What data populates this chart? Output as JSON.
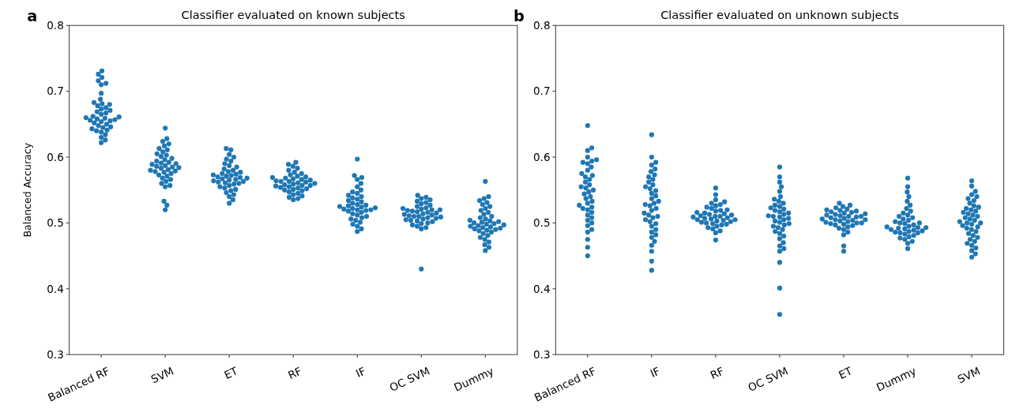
{
  "chart_data": [
    {
      "type": "scatter",
      "title": "Classifier evaluated on known subjects",
      "ylabel": "Balanced Accuracy",
      "annotations": [
        "a"
      ],
      "categories": [
        "Balanced RF",
        "SVM",
        "ET",
        "RF",
        "IF",
        "OC SVM",
        "Dummy"
      ],
      "ylim": [
        0.3,
        0.8
      ],
      "yticks": [
        0.3,
        0.4,
        0.5,
        0.6,
        0.7,
        0.8
      ],
      "marker": "circle",
      "series": [
        {
          "color": "#1f77b4",
          "x": [
            "Balanced RF",
            "Balanced RF",
            "Balanced RF",
            "Balanced RF",
            "Balanced RF",
            "Balanced RF",
            "Balanced RF",
            "Balanced RF",
            "Balanced RF",
            "Balanced RF",
            "Balanced RF",
            "Balanced RF",
            "Balanced RF",
            "Balanced RF",
            "Balanced RF",
            "Balanced RF",
            "Balanced RF",
            "Balanced RF",
            "Balanced RF",
            "Balanced RF",
            "Balanced RF",
            "Balanced RF",
            "Balanced RF",
            "Balanced RF",
            "Balanced RF",
            "Balanced RF",
            "Balanced RF",
            "Balanced RF",
            "Balanced RF",
            "Balanced RF",
            "Balanced RF",
            "Balanced RF",
            "Balanced RF",
            "Balanced RF",
            "Balanced RF",
            "Balanced RF",
            "Balanced RF",
            "Balanced RF",
            "Balanced RF",
            "Balanced RF"
          ],
          "values": [
            0.731,
            0.726,
            0.721,
            0.716,
            0.712,
            0.71,
            0.697,
            0.688,
            0.683,
            0.681,
            0.68,
            0.678,
            0.675,
            0.673,
            0.671,
            0.669,
            0.667,
            0.665,
            0.662,
            0.661,
            0.66,
            0.659,
            0.658,
            0.657,
            0.656,
            0.655,
            0.654,
            0.652,
            0.65,
            0.648,
            0.646,
            0.645,
            0.643,
            0.641,
            0.64,
            0.638,
            0.634,
            0.63,
            0.626,
            0.622
          ]
        },
        {
          "color": "#1f77b4",
          "x": [
            "SVM",
            "SVM",
            "SVM",
            "SVM",
            "SVM",
            "SVM",
            "SVM",
            "SVM",
            "SVM",
            "SVM",
            "SVM",
            "SVM",
            "SVM",
            "SVM",
            "SVM",
            "SVM",
            "SVM",
            "SVM",
            "SVM",
            "SVM",
            "SVM",
            "SVM",
            "SVM",
            "SVM",
            "SVM",
            "SVM",
            "SVM",
            "SVM",
            "SVM",
            "SVM",
            "SVM",
            "SVM",
            "SVM",
            "SVM",
            "SVM",
            "SVM",
            "SVM",
            "SVM",
            "SVM",
            "SVM"
          ],
          "values": [
            0.644,
            0.628,
            0.624,
            0.62,
            0.617,
            0.613,
            0.611,
            0.608,
            0.605,
            0.603,
            0.601,
            0.598,
            0.596,
            0.594,
            0.592,
            0.591,
            0.59,
            0.589,
            0.587,
            0.586,
            0.585,
            0.584,
            0.583,
            0.581,
            0.58,
            0.579,
            0.578,
            0.577,
            0.575,
            0.573,
            0.571,
            0.568,
            0.566,
            0.563,
            0.56,
            0.557,
            0.555,
            0.533,
            0.527,
            0.52
          ]
        },
        {
          "color": "#1f77b4",
          "x": [
            "ET",
            "ET",
            "ET",
            "ET",
            "ET",
            "ET",
            "ET",
            "ET",
            "ET",
            "ET",
            "ET",
            "ET",
            "ET",
            "ET",
            "ET",
            "ET",
            "ET",
            "ET",
            "ET",
            "ET",
            "ET",
            "ET",
            "ET",
            "ET",
            "ET",
            "ET",
            "ET",
            "ET",
            "ET",
            "ET",
            "ET",
            "ET",
            "ET",
            "ET",
            "ET",
            "ET",
            "ET",
            "ET",
            "ET",
            "ET"
          ],
          "values": [
            0.613,
            0.611,
            0.604,
            0.6,
            0.597,
            0.594,
            0.59,
            0.587,
            0.585,
            0.582,
            0.58,
            0.578,
            0.577,
            0.575,
            0.574,
            0.573,
            0.572,
            0.571,
            0.57,
            0.569,
            0.568,
            0.567,
            0.566,
            0.565,
            0.564,
            0.563,
            0.562,
            0.561,
            0.56,
            0.559,
            0.557,
            0.555,
            0.553,
            0.551,
            0.549,
            0.546,
            0.543,
            0.54,
            0.535,
            0.53
          ]
        },
        {
          "color": "#1f77b4",
          "x": [
            "RF",
            "RF",
            "RF",
            "RF",
            "RF",
            "RF",
            "RF",
            "RF",
            "RF",
            "RF",
            "RF",
            "RF",
            "RF",
            "RF",
            "RF",
            "RF",
            "RF",
            "RF",
            "RF",
            "RF",
            "RF",
            "RF",
            "RF",
            "RF",
            "RF",
            "RF",
            "RF",
            "RF",
            "RF",
            "RF",
            "RF",
            "RF",
            "RF",
            "RF",
            "RF",
            "RF",
            "RF",
            "RF",
            "RF",
            "RF"
          ],
          "values": [
            0.592,
            0.589,
            0.586,
            0.583,
            0.58,
            0.577,
            0.575,
            0.573,
            0.571,
            0.57,
            0.569,
            0.568,
            0.567,
            0.566,
            0.565,
            0.564,
            0.563,
            0.563,
            0.562,
            0.561,
            0.56,
            0.559,
            0.558,
            0.557,
            0.557,
            0.556,
            0.555,
            0.554,
            0.553,
            0.552,
            0.551,
            0.55,
            0.549,
            0.547,
            0.545,
            0.543,
            0.541,
            0.539,
            0.537,
            0.535
          ]
        },
        {
          "color": "#1f77b4",
          "x": [
            "IF",
            "IF",
            "IF",
            "IF",
            "IF",
            "IF",
            "IF",
            "IF",
            "IF",
            "IF",
            "IF",
            "IF",
            "IF",
            "IF",
            "IF",
            "IF",
            "IF",
            "IF",
            "IF",
            "IF",
            "IF",
            "IF",
            "IF",
            "IF",
            "IF",
            "IF",
            "IF",
            "IF",
            "IF",
            "IF",
            "IF",
            "IF",
            "IF",
            "IF",
            "IF",
            "IF",
            "IF",
            "IF",
            "IF",
            "IF"
          ],
          "values": [
            0.597,
            0.572,
            0.569,
            0.566,
            0.56,
            0.555,
            0.55,
            0.547,
            0.545,
            0.542,
            0.54,
            0.538,
            0.536,
            0.534,
            0.532,
            0.53,
            0.528,
            0.527,
            0.526,
            0.525,
            0.524,
            0.523,
            0.522,
            0.521,
            0.52,
            0.52,
            0.519,
            0.518,
            0.516,
            0.514,
            0.512,
            0.51,
            0.508,
            0.506,
            0.504,
            0.501,
            0.498,
            0.495,
            0.491,
            0.487
          ]
        },
        {
          "color": "#1f77b4",
          "x": [
            "OC SVM",
            "OC SVM",
            "OC SVM",
            "OC SVM",
            "OC SVM",
            "OC SVM",
            "OC SVM",
            "OC SVM",
            "OC SVM",
            "OC SVM",
            "OC SVM",
            "OC SVM",
            "OC SVM",
            "OC SVM",
            "OC SVM",
            "OC SVM",
            "OC SVM",
            "OC SVM",
            "OC SVM",
            "OC SVM",
            "OC SVM",
            "OC SVM",
            "OC SVM",
            "OC SVM",
            "OC SVM",
            "OC SVM",
            "OC SVM",
            "OC SVM",
            "OC SVM",
            "OC SVM",
            "OC SVM",
            "OC SVM",
            "OC SVM",
            "OC SVM",
            "OC SVM",
            "OC SVM",
            "OC SVM",
            "OC SVM",
            "OC SVM",
            "OC SVM"
          ],
          "values": [
            0.542,
            0.539,
            0.537,
            0.535,
            0.533,
            0.531,
            0.529,
            0.527,
            0.525,
            0.523,
            0.522,
            0.521,
            0.52,
            0.52,
            0.519,
            0.518,
            0.517,
            0.516,
            0.515,
            0.514,
            0.513,
            0.512,
            0.511,
            0.51,
            0.51,
            0.509,
            0.508,
            0.507,
            0.506,
            0.505,
            0.504,
            0.503,
            0.502,
            0.5,
            0.499,
            0.497,
            0.495,
            0.493,
            0.491,
            0.43
          ]
        },
        {
          "color": "#1f77b4",
          "x": [
            "Dummy",
            "Dummy",
            "Dummy",
            "Dummy",
            "Dummy",
            "Dummy",
            "Dummy",
            "Dummy",
            "Dummy",
            "Dummy",
            "Dummy",
            "Dummy",
            "Dummy",
            "Dummy",
            "Dummy",
            "Dummy",
            "Dummy",
            "Dummy",
            "Dummy",
            "Dummy",
            "Dummy",
            "Dummy",
            "Dummy",
            "Dummy",
            "Dummy",
            "Dummy",
            "Dummy",
            "Dummy",
            "Dummy",
            "Dummy",
            "Dummy",
            "Dummy",
            "Dummy",
            "Dummy",
            "Dummy",
            "Dummy",
            "Dummy",
            "Dummy",
            "Dummy",
            "Dummy"
          ],
          "values": [
            0.563,
            0.54,
            0.537,
            0.534,
            0.531,
            0.528,
            0.525,
            0.522,
            0.519,
            0.516,
            0.513,
            0.51,
            0.508,
            0.506,
            0.504,
            0.503,
            0.502,
            0.501,
            0.5,
            0.499,
            0.498,
            0.497,
            0.496,
            0.495,
            0.494,
            0.493,
            0.492,
            0.491,
            0.49,
            0.489,
            0.488,
            0.486,
            0.484,
            0.481,
            0.478,
            0.475,
            0.471,
            0.467,
            0.463,
            0.458
          ]
        }
      ]
    },
    {
      "type": "scatter",
      "title": "Classifier evaluated on unknown subjects",
      "annotations": [
        "b"
      ],
      "categories": [
        "Balanced RF",
        "IF",
        "RF",
        "OC SVM",
        "ET",
        "Dummy",
        "SVM"
      ],
      "ylim": [
        0.3,
        0.8
      ],
      "yticks": [
        0.3,
        0.4,
        0.5,
        0.6,
        0.7,
        0.8
      ],
      "marker": "circle",
      "series": [
        {
          "color": "#1f77b4",
          "x": [
            "Balanced RF",
            "Balanced RF",
            "Balanced RF",
            "Balanced RF",
            "Balanced RF",
            "Balanced RF",
            "Balanced RF",
            "Balanced RF",
            "Balanced RF",
            "Balanced RF",
            "Balanced RF",
            "Balanced RF",
            "Balanced RF",
            "Balanced RF",
            "Balanced RF",
            "Balanced RF",
            "Balanced RF",
            "Balanced RF",
            "Balanced RF",
            "Balanced RF",
            "Balanced RF",
            "Balanced RF",
            "Balanced RF",
            "Balanced RF",
            "Balanced RF",
            "Balanced RF",
            "Balanced RF",
            "Balanced RF",
            "Balanced RF",
            "Balanced RF",
            "Balanced RF",
            "Balanced RF",
            "Balanced RF",
            "Balanced RF",
            "Balanced RF",
            "Balanced RF",
            "Balanced RF",
            "Balanced RF",
            "Balanced RF",
            "Balanced RF"
          ],
          "values": [
            0.648,
            0.614,
            0.61,
            0.6,
            0.596,
            0.594,
            0.592,
            0.59,
            0.585,
            0.58,
            0.575,
            0.572,
            0.57,
            0.566,
            0.562,
            0.558,
            0.555,
            0.553,
            0.55,
            0.547,
            0.544,
            0.54,
            0.537,
            0.533,
            0.53,
            0.527,
            0.524,
            0.522,
            0.52,
            0.516,
            0.512,
            0.508,
            0.504,
            0.5,
            0.496,
            0.49,
            0.486,
            0.475,
            0.463,
            0.45
          ]
        },
        {
          "color": "#1f77b4",
          "x": [
            "IF",
            "IF",
            "IF",
            "IF",
            "IF",
            "IF",
            "IF",
            "IF",
            "IF",
            "IF",
            "IF",
            "IF",
            "IF",
            "IF",
            "IF",
            "IF",
            "IF",
            "IF",
            "IF",
            "IF",
            "IF",
            "IF",
            "IF",
            "IF",
            "IF",
            "IF",
            "IF",
            "IF",
            "IF",
            "IF",
            "IF",
            "IF",
            "IF",
            "IF",
            "IF",
            "IF",
            "IF",
            "IF",
            "IF",
            "IF"
          ],
          "values": [
            0.634,
            0.6,
            0.592,
            0.588,
            0.582,
            0.578,
            0.573,
            0.57,
            0.566,
            0.562,
            0.558,
            0.555,
            0.552,
            0.549,
            0.545,
            0.541,
            0.537,
            0.533,
            0.53,
            0.528,
            0.526,
            0.522,
            0.519,
            0.515,
            0.512,
            0.51,
            0.508,
            0.505,
            0.502,
            0.499,
            0.495,
            0.49,
            0.486,
            0.482,
            0.478,
            0.472,
            0.466,
            0.457,
            0.442,
            0.428
          ]
        },
        {
          "color": "#1f77b4",
          "x": [
            "RF",
            "RF",
            "RF",
            "RF",
            "RF",
            "RF",
            "RF",
            "RF",
            "RF",
            "RF",
            "RF",
            "RF",
            "RF",
            "RF",
            "RF",
            "RF",
            "RF",
            "RF",
            "RF",
            "RF",
            "RF",
            "RF",
            "RF",
            "RF",
            "RF",
            "RF",
            "RF",
            "RF",
            "RF",
            "RF",
            "RF",
            "RF",
            "RF",
            "RF",
            "RF",
            "RF",
            "RF",
            "RF",
            "RF",
            "RF"
          ],
          "values": [
            0.553,
            0.543,
            0.535,
            0.532,
            0.53,
            0.528,
            0.526,
            0.524,
            0.522,
            0.52,
            0.519,
            0.518,
            0.516,
            0.515,
            0.514,
            0.513,
            0.512,
            0.511,
            0.51,
            0.51,
            0.509,
            0.508,
            0.507,
            0.506,
            0.505,
            0.505,
            0.504,
            0.503,
            0.502,
            0.501,
            0.5,
            0.499,
            0.498,
            0.497,
            0.495,
            0.493,
            0.491,
            0.488,
            0.485,
            0.474
          ]
        },
        {
          "color": "#1f77b4",
          "x": [
            "OC SVM",
            "OC SVM",
            "OC SVM",
            "OC SVM",
            "OC SVM",
            "OC SVM",
            "OC SVM",
            "OC SVM",
            "OC SVM",
            "OC SVM",
            "OC SVM",
            "OC SVM",
            "OC SVM",
            "OC SVM",
            "OC SVM",
            "OC SVM",
            "OC SVM",
            "OC SVM",
            "OC SVM",
            "OC SVM",
            "OC SVM",
            "OC SVM",
            "OC SVM",
            "OC SVM",
            "OC SVM",
            "OC SVM",
            "OC SVM",
            "OC SVM",
            "OC SVM",
            "OC SVM",
            "OC SVM",
            "OC SVM",
            "OC SVM",
            "OC SVM",
            "OC SVM",
            "OC SVM",
            "OC SVM",
            "OC SVM",
            "OC SVM",
            "OC SVM"
          ],
          "values": [
            0.585,
            0.57,
            0.562,
            0.555,
            0.548,
            0.54,
            0.536,
            0.533,
            0.53,
            0.527,
            0.525,
            0.523,
            0.521,
            0.519,
            0.517,
            0.515,
            0.513,
            0.511,
            0.51,
            0.509,
            0.507,
            0.505,
            0.503,
            0.501,
            0.499,
            0.497,
            0.495,
            0.493,
            0.49,
            0.487,
            0.484,
            0.48,
            0.476,
            0.47,
            0.465,
            0.461,
            0.457,
            0.44,
            0.401,
            0.361
          ]
        },
        {
          "color": "#1f77b4",
          "x": [
            "ET",
            "ET",
            "ET",
            "ET",
            "ET",
            "ET",
            "ET",
            "ET",
            "ET",
            "ET",
            "ET",
            "ET",
            "ET",
            "ET",
            "ET",
            "ET",
            "ET",
            "ET",
            "ET",
            "ET",
            "ET",
            "ET",
            "ET",
            "ET",
            "ET",
            "ET",
            "ET",
            "ET",
            "ET",
            "ET",
            "ET",
            "ET",
            "ET",
            "ET",
            "ET",
            "ET",
            "ET",
            "ET",
            "ET",
            "ET"
          ],
          "values": [
            0.53,
            0.527,
            0.525,
            0.523,
            0.521,
            0.52,
            0.519,
            0.518,
            0.517,
            0.516,
            0.515,
            0.514,
            0.513,
            0.512,
            0.511,
            0.51,
            0.51,
            0.509,
            0.508,
            0.507,
            0.506,
            0.505,
            0.505,
            0.504,
            0.503,
            0.502,
            0.501,
            0.5,
            0.5,
            0.499,
            0.498,
            0.497,
            0.496,
            0.494,
            0.492,
            0.49,
            0.486,
            0.482,
            0.465,
            0.457
          ]
        },
        {
          "color": "#1f77b4",
          "x": [
            "Dummy",
            "Dummy",
            "Dummy",
            "Dummy",
            "Dummy",
            "Dummy",
            "Dummy",
            "Dummy",
            "Dummy",
            "Dummy",
            "Dummy",
            "Dummy",
            "Dummy",
            "Dummy",
            "Dummy",
            "Dummy",
            "Dummy",
            "Dummy",
            "Dummy",
            "Dummy",
            "Dummy",
            "Dummy",
            "Dummy",
            "Dummy",
            "Dummy",
            "Dummy",
            "Dummy",
            "Dummy",
            "Dummy",
            "Dummy",
            "Dummy",
            "Dummy",
            "Dummy",
            "Dummy",
            "Dummy",
            "Dummy",
            "Dummy",
            "Dummy",
            "Dummy",
            "Dummy"
          ],
          "values": [
            0.568,
            0.555,
            0.547,
            0.54,
            0.533,
            0.527,
            0.522,
            0.518,
            0.515,
            0.512,
            0.51,
            0.508,
            0.506,
            0.504,
            0.502,
            0.5,
            0.5,
            0.499,
            0.497,
            0.495,
            0.494,
            0.493,
            0.493,
            0.492,
            0.491,
            0.49,
            0.489,
            0.488,
            0.487,
            0.486,
            0.485,
            0.485,
            0.483,
            0.481,
            0.479,
            0.477,
            0.475,
            0.472,
            0.469,
            0.461
          ]
        },
        {
          "color": "#1f77b4",
          "x": [
            "SVM",
            "SVM",
            "SVM",
            "SVM",
            "SVM",
            "SVM",
            "SVM",
            "SVM",
            "SVM",
            "SVM",
            "SVM",
            "SVM",
            "SVM",
            "SVM",
            "SVM",
            "SVM",
            "SVM",
            "SVM",
            "SVM",
            "SVM",
            "SVM",
            "SVM",
            "SVM",
            "SVM",
            "SVM",
            "SVM",
            "SVM",
            "SVM",
            "SVM",
            "SVM",
            "SVM",
            "SVM",
            "SVM",
            "SVM",
            "SVM",
            "SVM",
            "SVM",
            "SVM",
            "SVM",
            "SVM"
          ],
          "values": [
            0.564,
            0.556,
            0.548,
            0.543,
            0.54,
            0.537,
            0.534,
            0.53,
            0.526,
            0.524,
            0.522,
            0.52,
            0.518,
            0.516,
            0.514,
            0.512,
            0.51,
            0.508,
            0.506,
            0.504,
            0.502,
            0.5,
            0.5,
            0.498,
            0.496,
            0.494,
            0.492,
            0.49,
            0.487,
            0.484,
            0.481,
            0.478,
            0.475,
            0.472,
            0.469,
            0.466,
            0.462,
            0.458,
            0.453,
            0.448
          ]
        }
      ]
    }
  ]
}
